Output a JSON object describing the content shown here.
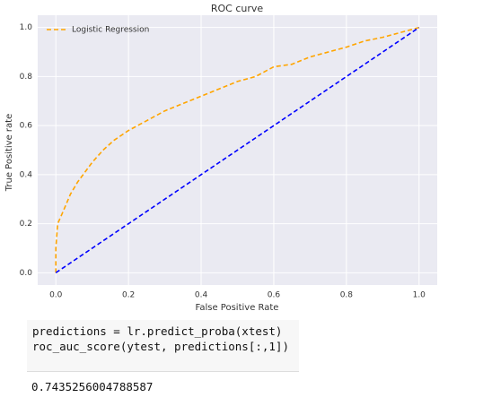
{
  "chart_data": {
    "type": "line",
    "title": "ROC curve",
    "x_label": "False Positive Rate",
    "y_label": "True Positive rate",
    "xlim": [
      -0.05,
      1.05
    ],
    "ylim": [
      -0.05,
      1.05
    ],
    "xticks": [
      {
        "value": 0,
        "label": "0.0"
      },
      0.2,
      0.4,
      0.6,
      0.8,
      {
        "value": 1,
        "label": "1.0"
      }
    ],
    "yticks": [
      {
        "value": 0,
        "label": "0.0"
      },
      0.2,
      0.4,
      0.6,
      0.8,
      {
        "value": 1,
        "label": "1.0"
      }
    ],
    "grid": true,
    "legend": "upper left",
    "series": [
      {
        "name": "Logistic Regression",
        "color": "orange",
        "x": [
          0,
          0,
          0.005,
          0.02,
          0.04,
          0.06,
          0.08,
          0.1,
          0.13,
          0.16,
          0.2,
          0.25,
          0.3,
          0.35,
          0.4,
          0.45,
          0.5,
          0.55,
          0.6,
          0.65,
          0.7,
          0.75,
          0.8,
          0.85,
          0.9,
          0.95,
          1
        ],
        "values": [
          0,
          0.1,
          0.2,
          0.25,
          0.32,
          0.37,
          0.41,
          0.45,
          0.5,
          0.54,
          0.58,
          0.62,
          0.66,
          0.69,
          0.72,
          0.75,
          0.78,
          0.8,
          0.84,
          0.85,
          0.88,
          0.9,
          0.92,
          0.945,
          0.96,
          0.98,
          1
        ]
      },
      {
        "color": "blue",
        "x": [
          0,
          1
        ],
        "values": [
          0,
          1
        ]
      }
    ]
  },
  "code": [
    "predictions = lr.predict_proba(xtest)",
    "roc_auc_score(ytest, predictions[:,1])"
  ],
  "output": "0.7435256004788587"
}
